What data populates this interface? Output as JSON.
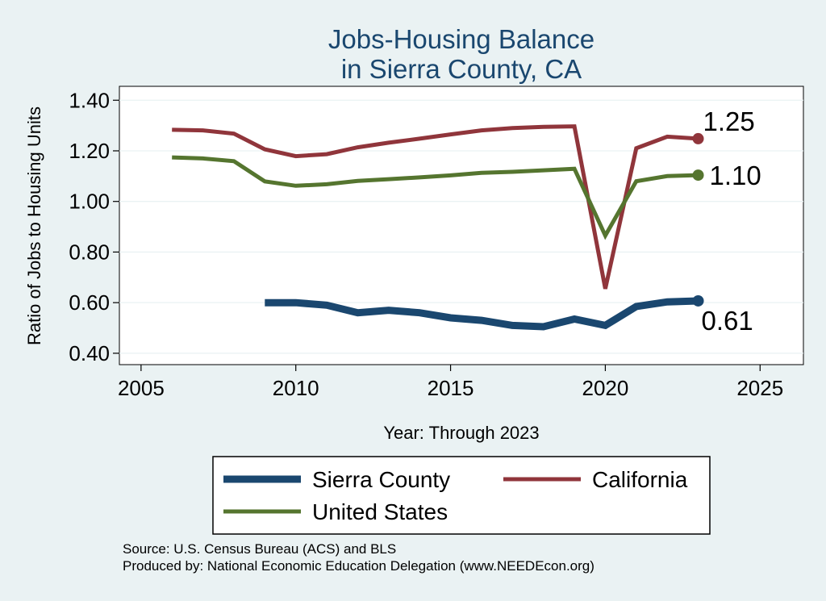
{
  "chart_data": {
    "type": "line",
    "title": [
      "Jobs-Housing Balance",
      "in Sierra County, CA"
    ],
    "xlabel": "Year: Through 2023",
    "ylabel": "Ratio of Jobs to Housing Units",
    "xlim": [
      2004.3,
      2026.4
    ],
    "ylim": [
      0.355,
      1.455
    ],
    "xticks": [
      2005,
      2010,
      2015,
      2020,
      2025
    ],
    "yticks": [
      0.4,
      0.6,
      0.8,
      1.0,
      1.2,
      1.4
    ],
    "ytick_labels": [
      "0.40",
      "0.60",
      "0.80",
      "1.00",
      "1.20",
      "1.40"
    ],
    "grid": true,
    "series": [
      {
        "name": "Sierra County",
        "color": "#1a476f",
        "x": [
          2009,
          2010,
          2011,
          2012,
          2013,
          2014,
          2015,
          2016,
          2017,
          2018,
          2019,
          2020,
          2021,
          2022,
          2023
        ],
        "values": [
          0.6,
          0.6,
          0.59,
          0.56,
          0.57,
          0.56,
          0.54,
          0.53,
          0.51,
          0.505,
          0.535,
          0.51,
          0.585,
          0.603,
          0.607
        ],
        "end_label": "0.61"
      },
      {
        "name": "California",
        "color": "#90353b",
        "x": [
          2006,
          2007,
          2008,
          2009,
          2010,
          2011,
          2012,
          2013,
          2014,
          2015,
          2016,
          2017,
          2018,
          2019,
          2020,
          2021,
          2022,
          2023
        ],
        "values": [
          1.283,
          1.281,
          1.268,
          1.206,
          1.179,
          1.187,
          1.214,
          1.232,
          1.248,
          1.265,
          1.281,
          1.29,
          1.295,
          1.297,
          0.655,
          1.21,
          1.256,
          1.248
        ],
        "end_label": "1.25"
      },
      {
        "name": "United States",
        "color": "#55752f",
        "x": [
          2006,
          2007,
          2008,
          2009,
          2010,
          2011,
          2012,
          2013,
          2014,
          2015,
          2016,
          2017,
          2018,
          2019,
          2020,
          2021,
          2022,
          2023
        ],
        "values": [
          1.174,
          1.17,
          1.159,
          1.079,
          1.062,
          1.068,
          1.081,
          1.088,
          1.095,
          1.103,
          1.113,
          1.117,
          1.123,
          1.129,
          0.865,
          1.08,
          1.1,
          1.104
        ],
        "end_label": "1.10"
      }
    ],
    "legend_order": [
      "Sierra County",
      "California",
      "United States"
    ],
    "notes": [
      "Source: U.S. Census Bureau (ACS) and BLS",
      "Produced by: National Economic Education Delegation (www.NEEDEcon.org)"
    ]
  }
}
